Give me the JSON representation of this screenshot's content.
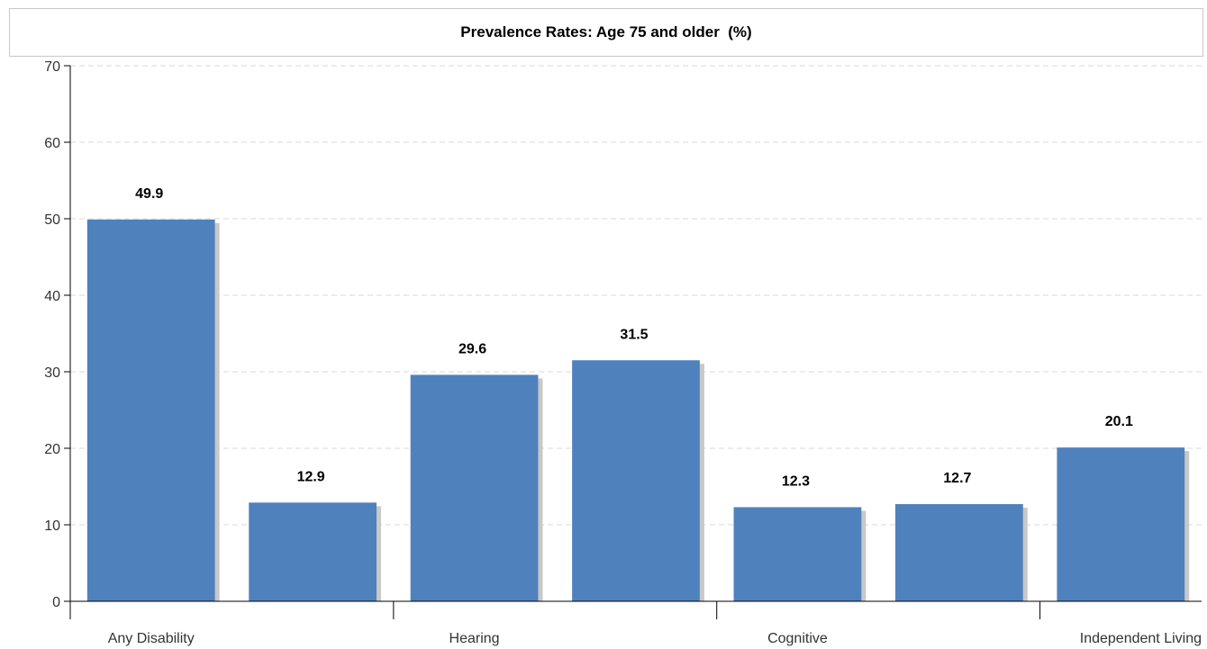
{
  "chart_data": {
    "type": "bar",
    "title": "Prevalence Rates: Age 75 and older  (%)",
    "xlabel": "",
    "ylabel": "",
    "ylim": [
      0,
      70
    ],
    "yticks": [
      0,
      10,
      20,
      30,
      40,
      50,
      60,
      70
    ],
    "grid": true,
    "legend": "none",
    "categories": [
      "Any Disability",
      "",
      "Hearing",
      "",
      "Cognitive",
      "",
      "Independent Living"
    ],
    "values": [
      49.9,
      12.9,
      29.6,
      31.5,
      12.3,
      12.7,
      20.1
    ],
    "value_labels": [
      "49.9",
      "12.9",
      "29.6",
      "31.5",
      "12.3",
      "12.7",
      "20.1"
    ],
    "colors": {
      "bar": "#4f81bd",
      "bar_shadow": "#c8c8c8",
      "grid": "#d9d9d9",
      "axis": "#000000",
      "tick_label": "#333333"
    }
  }
}
